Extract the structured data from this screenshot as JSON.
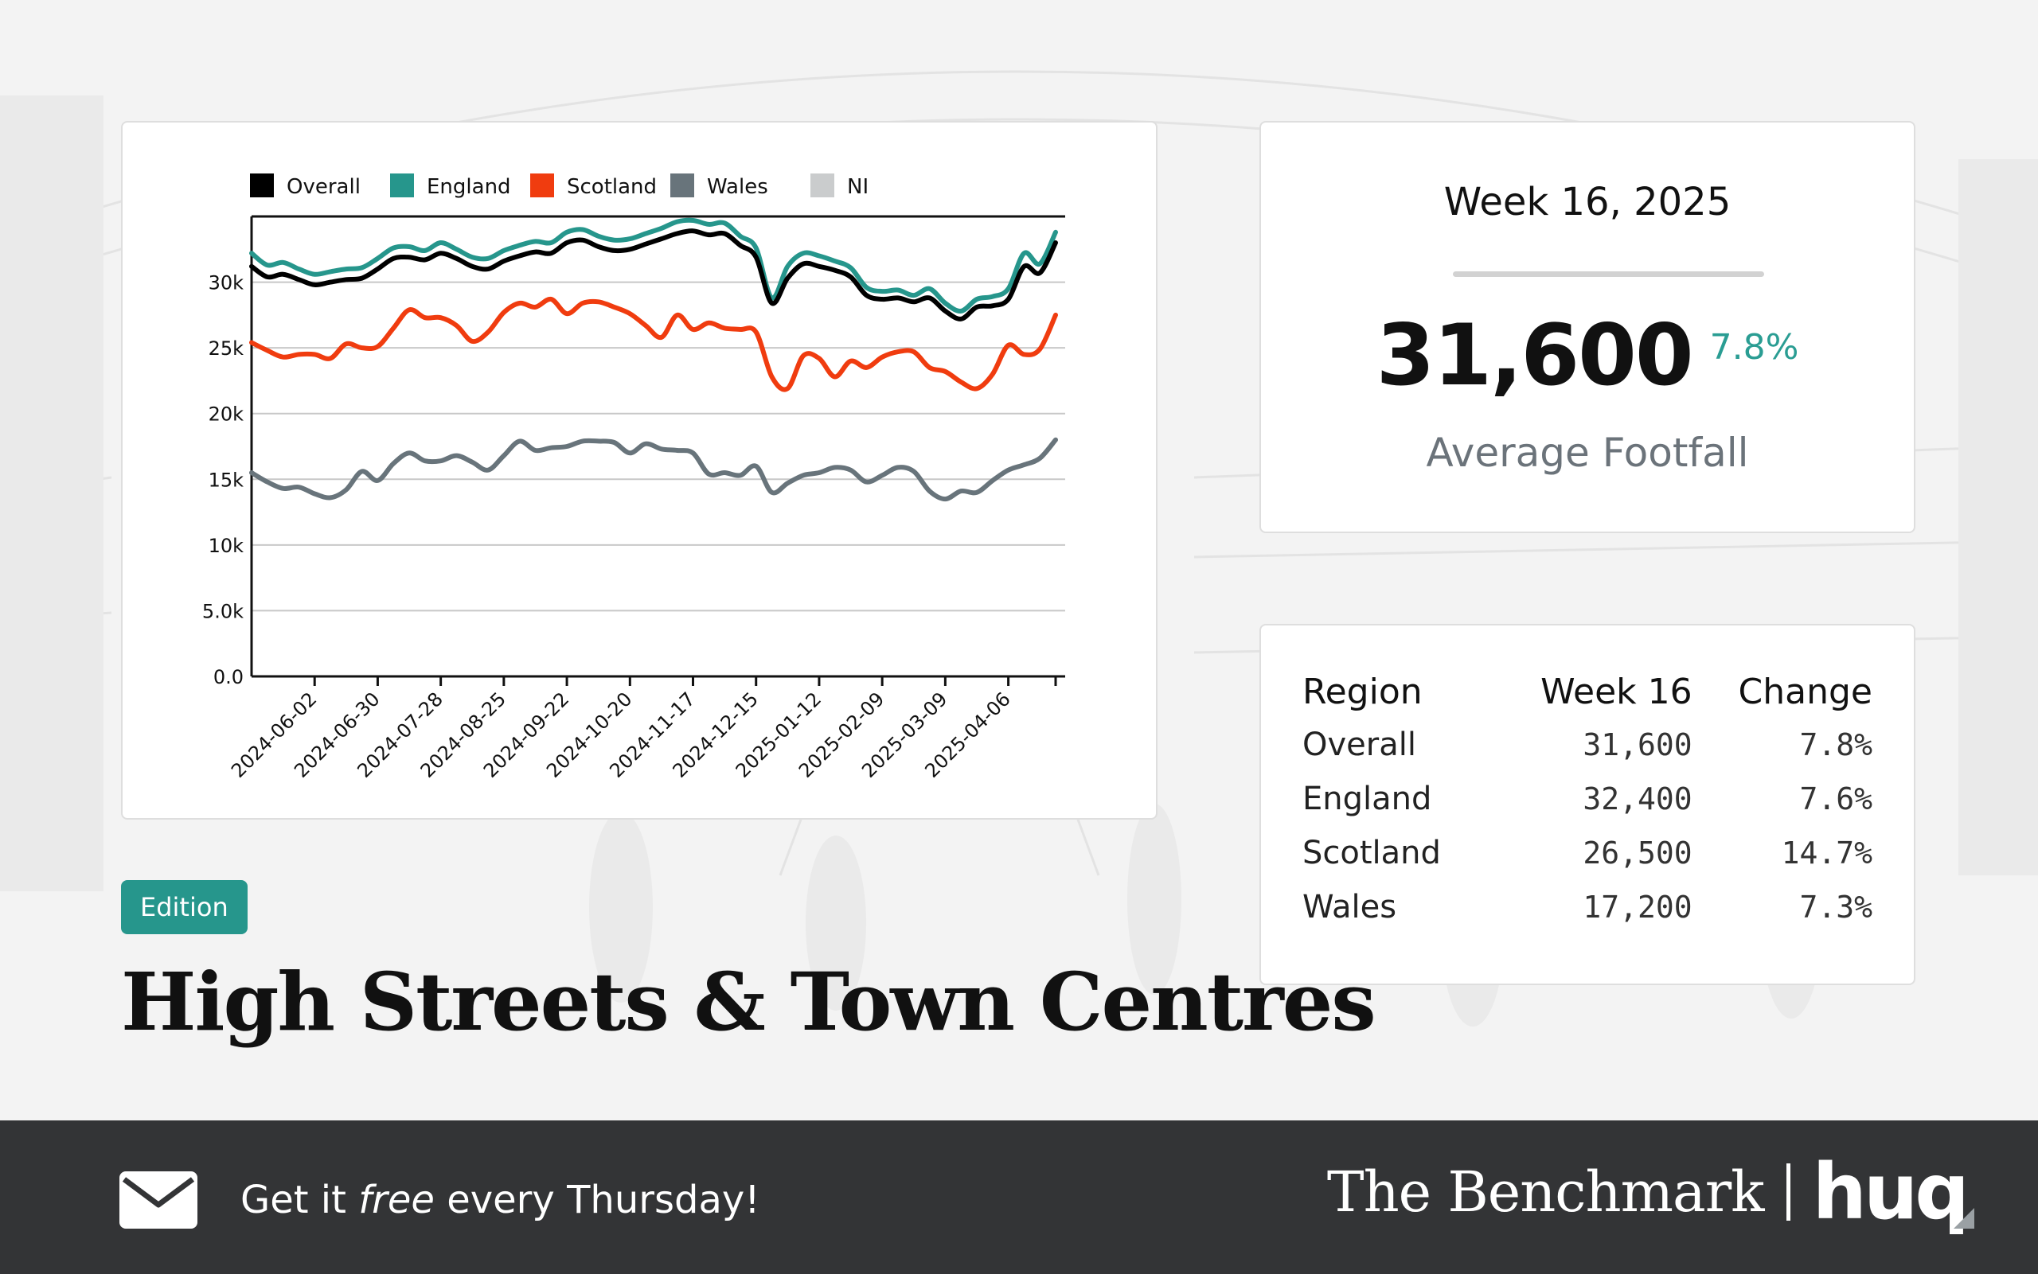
{
  "chart_data": {
    "type": "line",
    "title": "",
    "xlabel": "",
    "ylabel": "",
    "ylim": [
      0,
      35000
    ],
    "yticks": [
      "0.0",
      "5.0k",
      "10k",
      "15k",
      "20k",
      "25k",
      "30k"
    ],
    "xticks": [
      "2024-06-02",
      "2024-06-30",
      "2024-07-28",
      "2024-08-25",
      "2024-09-22",
      "2024-10-20",
      "2024-11-17",
      "2024-12-15",
      "2025-01-12",
      "2025-02-09",
      "2025-03-09",
      "2025-04-06"
    ],
    "week_start": "2024-05-05",
    "legend_position": "top",
    "grid": true,
    "series": [
      {
        "name": "Overall",
        "color": "#000000",
        "values": [
          31200,
          30400,
          30600,
          30200,
          29800,
          30000,
          30200,
          30300,
          31000,
          31800,
          31900,
          31700,
          32200,
          31800,
          31200,
          31000,
          31600,
          32000,
          32300,
          32200,
          33000,
          33200,
          32700,
          32400,
          32500,
          32900,
          33300,
          33700,
          33900,
          33600,
          33700,
          32800,
          31900,
          28400,
          30300,
          31400,
          31200,
          30900,
          30400,
          29000,
          28700,
          28800,
          28500,
          28800,
          27800,
          27200,
          28100,
          28200,
          28700,
          31200,
          30700,
          33000
        ]
      },
      {
        "name": "England",
        "color": "#26968c",
        "values": [
          32200,
          31300,
          31500,
          31000,
          30600,
          30800,
          31000,
          31100,
          31800,
          32600,
          32700,
          32400,
          33000,
          32500,
          31900,
          31800,
          32400,
          32800,
          33100,
          33000,
          33800,
          34000,
          33500,
          33200,
          33300,
          33700,
          34100,
          34600,
          34700,
          34400,
          34500,
          33500,
          32600,
          28800,
          31200,
          32200,
          32000,
          31600,
          31100,
          29600,
          29300,
          29400,
          29000,
          29500,
          28400,
          27800,
          28700,
          28900,
          29500,
          32200,
          31400,
          33800
        ]
      },
      {
        "name": "Scotland",
        "color": "#f03c0f",
        "values": [
          25400,
          24800,
          24300,
          24500,
          24500,
          24200,
          25300,
          25000,
          25100,
          26500,
          27900,
          27300,
          27300,
          26700,
          25500,
          26200,
          27700,
          28400,
          28100,
          28700,
          27600,
          28400,
          28500,
          28100,
          27600,
          26700,
          25800,
          27500,
          26400,
          26900,
          26500,
          26400,
          26200,
          22800,
          21900,
          24400,
          24200,
          22800,
          24000,
          23500,
          24300,
          24700,
          24700,
          23500,
          23200,
          22400,
          21900,
          23000,
          25200,
          24500,
          24900,
          27500
        ]
      },
      {
        "name": "Wales",
        "color": "#68747b",
        "values": [
          15500,
          14800,
          14300,
          14400,
          13900,
          13600,
          14200,
          15600,
          14900,
          16200,
          17000,
          16400,
          16400,
          16800,
          16300,
          15700,
          16800,
          17900,
          17200,
          17400,
          17500,
          17900,
          17900,
          17800,
          17000,
          17700,
          17300,
          17200,
          17000,
          15400,
          15500,
          15300,
          16000,
          14000,
          14700,
          15300,
          15500,
          15900,
          15700,
          14800,
          15300,
          15900,
          15600,
          14100,
          13500,
          14100,
          14000,
          14900,
          15700,
          16100,
          16600,
          18000
        ]
      },
      {
        "name": "NI",
        "color": "#cacccd",
        "values": []
      }
    ]
  },
  "kpi": {
    "week": "Week 16, 2025",
    "value": "31,600",
    "change": "7.8%",
    "label": "Average Footfall"
  },
  "region_table": {
    "headers": [
      "Region",
      "Week 16",
      "Change"
    ],
    "rows": [
      {
        "region": "Overall",
        "week16": "31,600",
        "change": "7.8%"
      },
      {
        "region": "England",
        "week16": "32,400",
        "change": "7.6%"
      },
      {
        "region": "Scotland",
        "week16": "26,500",
        "change": "14.7%"
      },
      {
        "region": "Wales",
        "week16": "17,200",
        "change": "7.3%"
      }
    ]
  },
  "edition_badge": "Edition",
  "page_title": "High Streets & Town Centres",
  "footer": {
    "cta_prefix": "Get it",
    "cta_emphasis": "free",
    "cta_suffix": "every Thursday!",
    "brand_name": "The Benchmark",
    "brand_logo": "huq",
    "mail_icon": "envelope-icon"
  },
  "colors": {
    "accent": "#26968c",
    "footer_bg": "#333436",
    "scotland": "#f03c0f"
  }
}
